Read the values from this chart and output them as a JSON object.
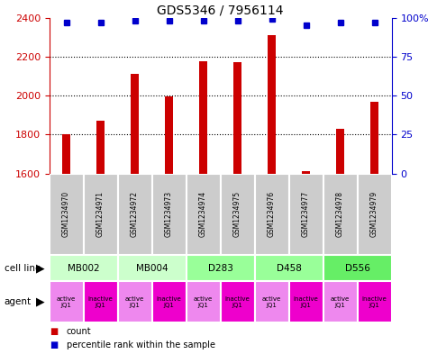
{
  "title": "GDS5346 / 7956114",
  "samples": [
    "GSM1234970",
    "GSM1234971",
    "GSM1234972",
    "GSM1234973",
    "GSM1234974",
    "GSM1234975",
    "GSM1234976",
    "GSM1234977",
    "GSM1234978",
    "GSM1234979"
  ],
  "counts": [
    1800,
    1870,
    2110,
    1995,
    2175,
    2170,
    2310,
    1610,
    1830,
    1970
  ],
  "percentiles": [
    97,
    97,
    98,
    98,
    98,
    98,
    99,
    95,
    97,
    97
  ],
  "ylim_left": [
    1600,
    2400
  ],
  "ylim_right": [
    0,
    100
  ],
  "yticks_left": [
    1600,
    1800,
    2000,
    2200,
    2400
  ],
  "yticks_right": [
    0,
    25,
    50,
    75,
    100
  ],
  "ytick_right_labels": [
    "0",
    "25",
    "50",
    "75",
    "100%"
  ],
  "cell_lines": [
    {
      "label": "MB002",
      "cols": [
        0,
        1
      ],
      "color": "#ccffcc"
    },
    {
      "label": "MB004",
      "cols": [
        2,
        3
      ],
      "color": "#ccffcc"
    },
    {
      "label": "D283",
      "cols": [
        4,
        5
      ],
      "color": "#99ff99"
    },
    {
      "label": "D458",
      "cols": [
        6,
        7
      ],
      "color": "#99ff99"
    },
    {
      "label": "D556",
      "cols": [
        8,
        9
      ],
      "color": "#66ee66"
    }
  ],
  "agents": [
    "active\nJQ1",
    "inactive\nJQ1",
    "active\nJQ1",
    "inactive\nJQ1",
    "active\nJQ1",
    "inactive\nJQ1",
    "active\nJQ1",
    "inactive\nJQ1",
    "active\nJQ1",
    "inactive\nJQ1"
  ],
  "agent_colors": [
    "#ee88ee",
    "#ee00cc",
    "#ee88ee",
    "#ee00cc",
    "#ee88ee",
    "#ee00cc",
    "#ee88ee",
    "#ee00cc",
    "#ee88ee",
    "#ee00cc"
  ],
  "bar_color": "#cc0000",
  "dot_color": "#0000cc",
  "sample_bg_color": "#cccccc",
  "title_fontsize": 10,
  "axis_label_color_left": "#cc0000",
  "axis_label_color_right": "#0000cc",
  "bar_width": 0.25
}
